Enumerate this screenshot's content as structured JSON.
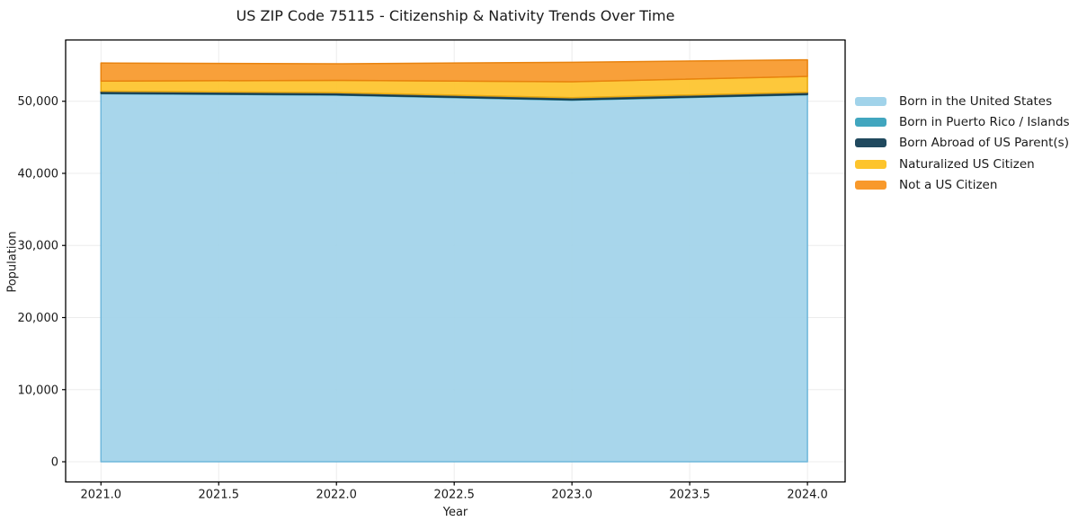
{
  "chart_data": {
    "type": "area",
    "stacked": true,
    "title": "US ZIP Code 75115 - Citizenship & Nativity Trends Over Time",
    "xlabel": "Year",
    "ylabel": "Population",
    "x": [
      2021,
      2022,
      2023,
      2024
    ],
    "series": [
      {
        "name": "Born in the United States",
        "color": "#A1D3EA",
        "edge": "#6FB7DB",
        "values": [
          51050,
          50850,
          50150,
          50900
        ]
      },
      {
        "name": "Born in Puerto Rico / Islands",
        "color": "#41A6BF",
        "edge": "#2D8FA8",
        "values": [
          60,
          60,
          60,
          60
        ]
      },
      {
        "name": "Born Abroad of US Parent(s)",
        "color": "#20495E",
        "edge": "#173848",
        "values": [
          290,
          290,
          290,
          290
        ]
      },
      {
        "name": "Naturalized US Citizen",
        "color": "#FDC42C",
        "edge": "#E9A90F",
        "values": [
          1400,
          1700,
          2200,
          2200
        ]
      },
      {
        "name": "Not a US Citizen",
        "color": "#F8992B",
        "edge": "#E8830F",
        "values": [
          2500,
          2300,
          2700,
          2300
        ]
      }
    ],
    "xlim": [
      2020.85,
      2024.16
    ],
    "ylim": [
      -2800,
      58500
    ],
    "x_ticks": [
      2021.0,
      2021.5,
      2022.0,
      2022.5,
      2023.0,
      2023.5,
      2024.0
    ],
    "x_tick_labels": [
      "2021.0",
      "2021.5",
      "2022.0",
      "2022.5",
      "2023.0",
      "2023.5",
      "2024.0"
    ],
    "y_ticks": [
      0,
      10000,
      20000,
      30000,
      40000,
      50000
    ],
    "y_tick_labels": [
      "0",
      "10,000",
      "20,000",
      "30,000",
      "40,000",
      "50,000"
    ],
    "grid": true,
    "grid_color": "#dddddd",
    "spine_color": "#000000",
    "legend_position": "right"
  }
}
